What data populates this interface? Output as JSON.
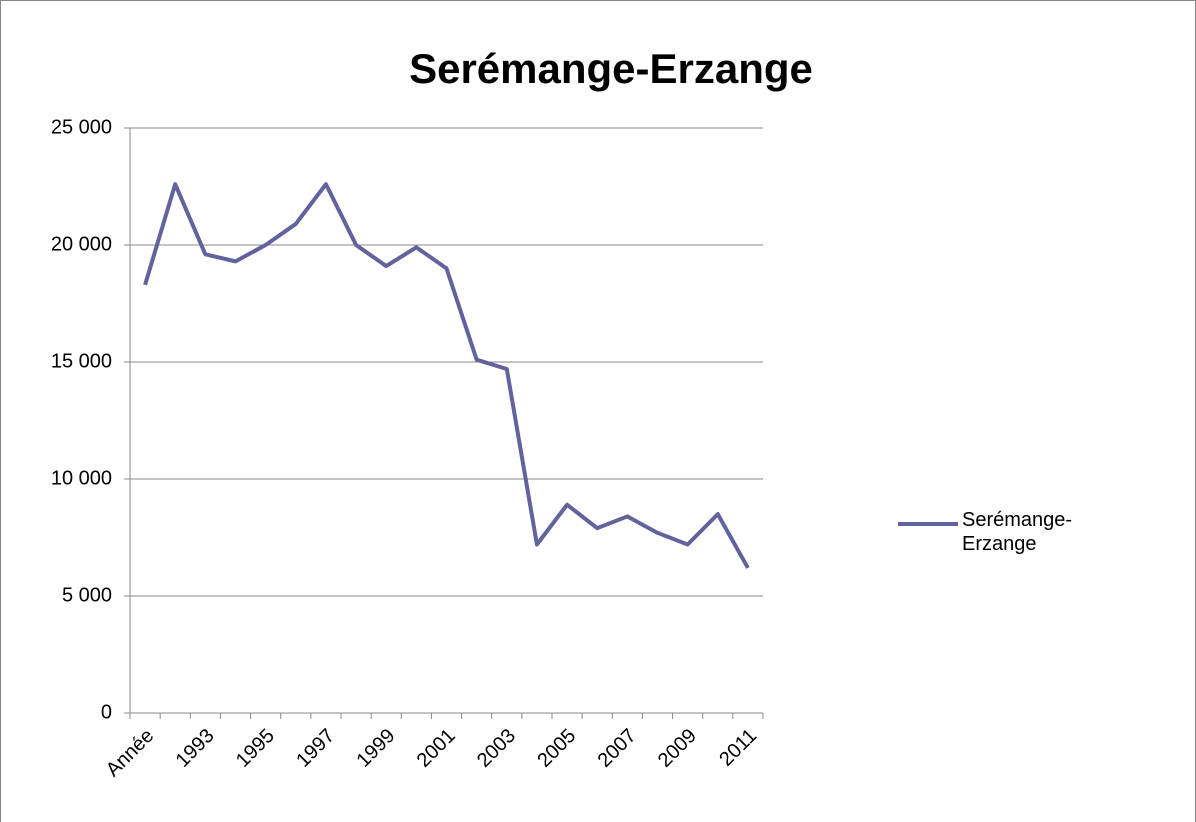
{
  "chart_data": {
    "type": "line",
    "title": "Serémange-Erzange",
    "categories": [
      "Année",
      null,
      "1993",
      null,
      "1995",
      null,
      "1997",
      null,
      "1999",
      null,
      "2001",
      null,
      "2003",
      null,
      "2005",
      null,
      "2007",
      null,
      "2009",
      null,
      "2011"
    ],
    "series": [
      {
        "name": "Serémange-Erzange",
        "color": "#62629c",
        "values": [
          18300,
          22600,
          19600,
          19300,
          20000,
          20900,
          22600,
          20000,
          19100,
          19900,
          19000,
          15100,
          14700,
          7200,
          8900,
          7900,
          8400,
          7700,
          7200,
          8500,
          6200
        ]
      }
    ],
    "ylim": [
      0,
      25000
    ],
    "yticks": [
      0,
      {
        "value": 5000,
        "label": "5 000"
      },
      {
        "value": 10000,
        "label": "10 000"
      },
      {
        "value": 15000,
        "label": "15 000"
      },
      {
        "value": 20000,
        "label": "20 000"
      },
      {
        "value": 25000,
        "label": "25 000"
      }
    ],
    "grid": true,
    "legend": "right"
  }
}
